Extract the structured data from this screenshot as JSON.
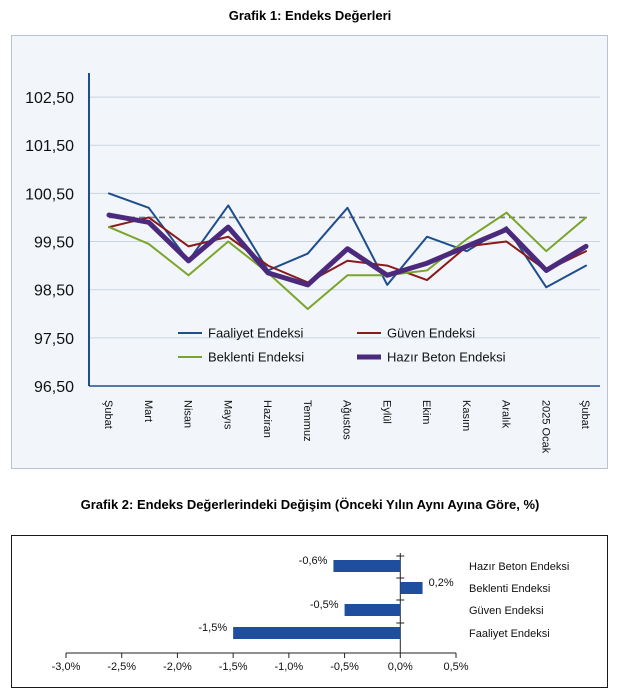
{
  "chart1": {
    "title": "Grafik 1: Endeks Değerleri",
    "chart_data": {
      "type": "line",
      "title": "Grafik 1: Endeks Değerleri",
      "categories": [
        "Şubat",
        "Mart",
        "Nisan",
        "Mayıs",
        "Haziran",
        "Temmuz",
        "Ağustos",
        "Eylül",
        "Ekim",
        "Kasım",
        "Aralık",
        "2025 Ocak",
        "Şubat"
      ],
      "y_ticks": [
        "102,50",
        "101,50",
        "100,50",
        "99,50",
        "98,50",
        "97,50",
        "96,50"
      ],
      "ylim": [
        96.5,
        103.0
      ],
      "reference_line": 100.0,
      "grid": true,
      "legend_position": "bottom-inside",
      "series": [
        {
          "name": "Faaliyet Endeksi",
          "color": "#1f4e8c",
          "width": 2,
          "values": [
            100.5,
            100.2,
            99.1,
            100.25,
            98.9,
            99.25,
            100.2,
            98.6,
            99.6,
            99.3,
            99.8,
            98.55,
            99.0
          ]
        },
        {
          "name": "Güven Endeksi",
          "color": "#8b1a1a",
          "width": 2,
          "values": [
            99.8,
            100.0,
            99.4,
            99.6,
            99.0,
            98.65,
            99.1,
            99.0,
            98.7,
            99.4,
            99.5,
            98.9,
            99.3
          ]
        },
        {
          "name": "Beklenti Endeksi",
          "color": "#7aa52a",
          "width": 2,
          "values": [
            99.8,
            99.45,
            98.8,
            99.5,
            98.85,
            98.1,
            98.8,
            98.8,
            98.9,
            99.55,
            100.1,
            99.3,
            100.0
          ]
        },
        {
          "name": "Hazır Beton Endeksi",
          "color": "#4b2a7e",
          "width": 5,
          "values": [
            100.05,
            99.9,
            99.1,
            99.8,
            98.85,
            98.6,
            99.35,
            98.8,
            99.05,
            99.4,
            99.75,
            98.9,
            99.4
          ]
        }
      ]
    }
  },
  "chart2": {
    "title": "Grafik 2: Endeks Değerlerindeki Değişim (Önceki Yılın Aynı Ayına Göre, %)",
    "chart_data": {
      "type": "bar",
      "orientation": "horizontal",
      "title": "Grafik 2: Endeks Değerlerindeki Değişim (Önceki Yılın Aynı Ayına Göre, %)",
      "categories": [
        "Hazır Beton Endeksi",
        "Beklenti Endeksi",
        "Güven Endeksi",
        "Faaliyet Endeksi"
      ],
      "values": [
        -0.6,
        0.2,
        -0.5,
        -1.5
      ],
      "data_labels": [
        "-0,6%",
        "0,2%",
        "-0,5%",
        "-1,5%"
      ],
      "x_ticks": [
        "-3,0%",
        "-2,5%",
        "-2,0%",
        "-1,5%",
        "-1,0%",
        "-0,5%",
        "0,0%",
        "0,5%"
      ],
      "xlim": [
        -3.0,
        0.5
      ],
      "bar_color": "#1f4e9e"
    }
  }
}
